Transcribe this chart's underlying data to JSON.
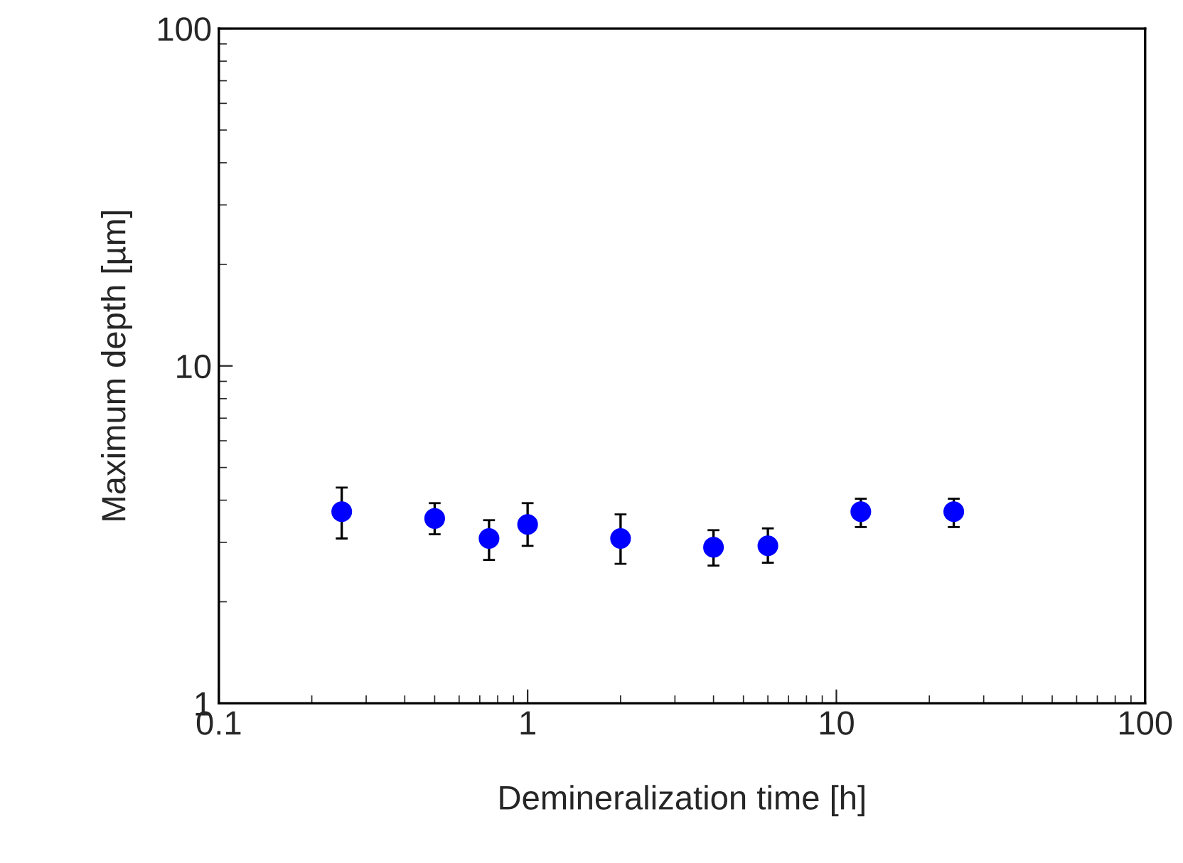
{
  "chart_data": {
    "type": "scatter",
    "xlabel": "Demineralization time [h]",
    "ylabel": "Maximum depth [µm]",
    "log": "xy",
    "x": [
      0.25,
      0.5,
      0.75,
      1,
      2,
      4,
      6,
      12,
      24
    ],
    "series": [
      {
        "color": "#0000ff",
        "values": [
          3.7,
          3.53,
          3.08,
          3.39,
          3.08,
          2.9,
          2.93,
          3.7,
          3.7
        ],
        "errors": [
          [
            3.08,
            4.36
          ],
          [
            3.17,
            3.92
          ],
          [
            2.66,
            3.49
          ],
          [
            2.93,
            3.92
          ],
          [
            2.59,
            3.63
          ],
          [
            2.56,
            3.26
          ],
          [
            2.61,
            3.3
          ],
          [
            3.33,
            4.04
          ],
          [
            3.33,
            4.04
          ]
        ]
      }
    ],
    "xlim": [
      0.1,
      100
    ],
    "xticks": [
      0.1,
      1,
      10,
      100
    ],
    "ylim": [
      1,
      100
    ],
    "yticks": [
      1,
      10,
      100
    ],
    "marker": "circle",
    "grid": false,
    "legend": false
  }
}
